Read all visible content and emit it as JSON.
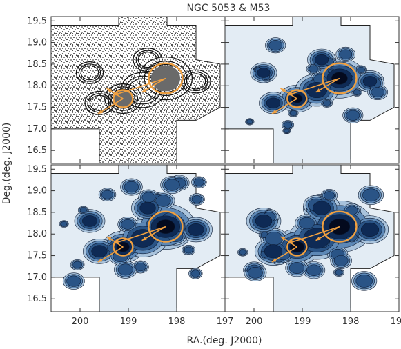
{
  "chart_data": {
    "type": "contour",
    "title": "NGC 5053 & M53",
    "xlabel": "RA.(deg. J2000)",
    "ylabel": "Deg.(deg. J2000)",
    "xlim": [
      200.6,
      197.0
    ],
    "ylim": [
      16.2,
      19.6
    ],
    "x_ticks": [
      "200",
      "199",
      "198",
      "197"
    ],
    "x_tick_values": [
      200,
      199,
      198,
      197
    ],
    "y_ticks": [
      "16.5",
      "17.0",
      "17.5",
      "18.0",
      "18.5",
      "19.0",
      "19.5"
    ],
    "y_tick_values": [
      16.5,
      17.0,
      17.5,
      18.0,
      18.5,
      19.0,
      19.5
    ],
    "panels": [
      {
        "position": "top-left",
        "style": "grayscale noise map with black contour lines"
      },
      {
        "position": "top-right",
        "style": "filled blue contours"
      },
      {
        "position": "bottom-left",
        "style": "filled blue contours"
      },
      {
        "position": "bottom-right",
        "style": "filled blue contours"
      }
    ],
    "clusters": [
      {
        "name": "M53",
        "ra": 198.23,
        "dec": 18.17,
        "radius_deg": 0.35
      },
      {
        "name": "NGC 5053",
        "ra": 199.11,
        "dec": 17.7,
        "radius_deg": 0.2
      }
    ],
    "arrows": [
      {
        "from_cluster": "M53",
        "to": [
          199.3,
          17.78
        ]
      },
      {
        "from_cluster": "M53",
        "to": [
          198.72,
          17.85
        ]
      },
      {
        "from_cluster": "NGC 5053",
        "to": [
          199.45,
          17.94
        ]
      },
      {
        "from_cluster": "NGC 5053",
        "to": [
          199.63,
          17.35
        ]
      }
    ],
    "footprint": "cross-shaped survey footprint",
    "colors": {
      "circle": "#f0a040",
      "arrow": "#f0a040",
      "fill_levels": [
        "#e3ecf4",
        "#a9c3dc",
        "#5d88b6",
        "#2a5486",
        "#0e2a55",
        "#040a1e"
      ],
      "noise_gray": "#9a9a9a"
    }
  }
}
